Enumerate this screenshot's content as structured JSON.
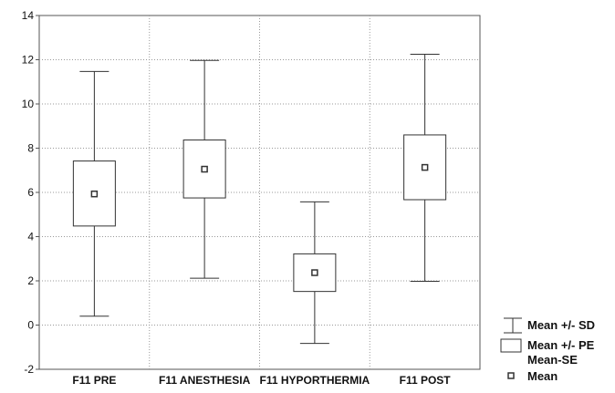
{
  "chart_data": {
    "type": "box",
    "categories": [
      "F11 PRE",
      "F11 ANESTHESIA",
      "F11 HYPORTHERMIA",
      "F11 POST"
    ],
    "series": [
      {
        "name": "Mean",
        "values": [
          5.93,
          7.05,
          2.37,
          7.13
        ]
      },
      {
        "name": "Mean+SE",
        "values": [
          7.42,
          8.37,
          3.22,
          8.6
        ]
      },
      {
        "name": "Mean-SE",
        "values": [
          4.48,
          5.75,
          1.52,
          5.67
        ]
      },
      {
        "name": "Mean+SD",
        "values": [
          11.47,
          11.97,
          5.57,
          12.25
        ]
      },
      {
        "name": "Mean-SD",
        "values": [
          0.4,
          2.12,
          -0.83,
          1.98
        ]
      }
    ],
    "ylim": [
      -2,
      14
    ],
    "yticks": [
      -2,
      0,
      2,
      4,
      6,
      8,
      10,
      12,
      14
    ],
    "grid": true,
    "legend_position": "bottom-right",
    "legend": [
      "Mean +/- SD",
      "Mean +/- PE",
      "Mean-SE",
      "Mean"
    ]
  }
}
